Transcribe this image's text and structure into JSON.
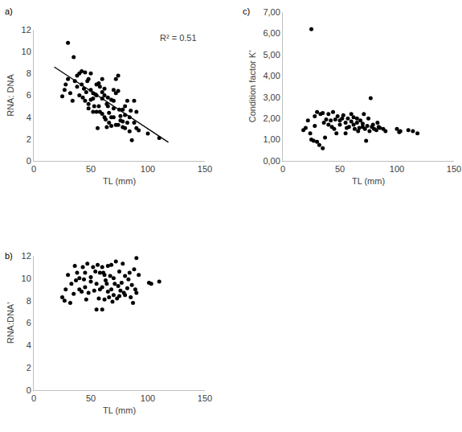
{
  "chart_data": [
    {
      "type": "scatter",
      "title": "a)",
      "x_label": "TL (mm)",
      "y_label": "RNA: DNA",
      "xlim": [
        0,
        150
      ],
      "xticks": [
        0,
        50,
        100,
        150
      ],
      "ylim": [
        0,
        12
      ],
      "yticks": [
        0,
        2,
        4,
        6,
        8,
        10,
        12
      ],
      "annotations": [
        {
          "text": "R² = 0.51"
        }
      ],
      "series": [
        {
          "type": "scatter",
          "color": "#000000",
          "marker": "circle",
          "x": [
            30,
            35,
            27,
            28,
            25,
            32,
            38,
            40,
            42,
            45,
            40,
            43,
            45,
            48,
            50,
            50,
            52,
            55,
            55,
            58,
            60,
            60,
            62,
            65,
            57,
            55,
            58,
            60,
            62,
            52,
            50,
            48,
            53,
            65,
            68,
            70,
            72,
            74,
            70,
            72,
            75,
            78,
            80,
            82,
            68,
            70,
            66,
            68,
            72,
            74,
            76,
            78,
            80,
            82,
            84,
            85,
            88,
            90,
            88,
            86,
            90,
            92,
            100,
            110,
            63,
            64,
            56,
            48,
            44,
            36,
            34,
            30,
            38,
            46,
            54,
            60,
            66,
            74,
            76,
            80,
            47,
            42,
            57,
            64,
            70,
            78,
            84,
            62,
            52
          ],
          "values": [
            10.8,
            9.5,
            6.5,
            7,
            5.9,
            6.2,
            6.8,
            8,
            8.2,
            8.1,
            6,
            5.8,
            5.5,
            7.5,
            8,
            6.5,
            6.2,
            6,
            7,
            6.8,
            7.5,
            6.3,
            6,
            5.8,
            5,
            4.5,
            4.5,
            4.3,
            4,
            4.5,
            5.6,
            5.2,
            5,
            5,
            5.6,
            5.5,
            7.5,
            7.8,
            6.5,
            6.2,
            4.7,
            4.7,
            5,
            5.5,
            4,
            4,
            3.5,
            3.2,
            3.3,
            3.3,
            3.7,
            3.6,
            3,
            3.5,
            4,
            4.6,
            5.5,
            4.5,
            3.5,
            1.9,
            3,
            2.8,
            2.5,
            2.1,
            3.8,
            3.1,
            3,
            4.8,
            6.6,
            7.3,
            5.5,
            7.5,
            7.8,
            6.3,
            6.1,
            5.7,
            4.4,
            6.4,
            4.1,
            4.2,
            7.3,
            7,
            7.1,
            5.2,
            4.8,
            3.1,
            2.7,
            6.6,
            5.7
          ]
        },
        {
          "type": "line",
          "color": "#000000",
          "line_style": "solid",
          "x": [
            18,
            118
          ],
          "values": [
            8.6,
            1.7
          ]
        }
      ]
    },
    {
      "type": "scatter",
      "title": "b)",
      "x_label": "TL (mm)",
      "y_label": "RNA:DNA'",
      "xlim": [
        0,
        150
      ],
      "xticks": [
        0,
        50,
        100,
        150
      ],
      "ylim": [
        0,
        12
      ],
      "yticks": [
        0,
        2,
        4,
        6,
        8,
        10,
        12
      ],
      "series": [
        {
          "type": "scatter",
          "color": "#000000",
          "marker": "circle",
          "x": [
            25,
            27,
            28,
            30,
            32,
            33,
            35,
            37,
            38,
            40,
            40,
            42,
            43,
            45,
            45,
            47,
            48,
            50,
            50,
            52,
            53,
            55,
            55,
            56,
            57,
            58,
            60,
            60,
            60,
            62,
            62,
            63,
            65,
            65,
            66,
            67,
            68,
            68,
            70,
            70,
            71,
            72,
            73,
            74,
            75,
            76,
            77,
            78,
            80,
            80,
            82,
            83,
            84,
            85,
            86,
            87,
            88,
            89,
            90,
            90,
            92,
            101,
            103,
            110,
            46,
            54,
            64,
            69,
            79,
            58,
            36,
            44,
            61,
            75
          ],
          "values": [
            8.3,
            8,
            9,
            10.3,
            7.8,
            9.5,
            8.6,
            9.8,
            10.5,
            10,
            9,
            8.8,
            11,
            10.5,
            9.2,
            11.3,
            8.7,
            9.7,
            10.1,
            11,
            8.9,
            9.5,
            7.2,
            11.2,
            8.2,
            10.5,
            7.2,
            9.2,
            11,
            8.1,
            10.3,
            9.8,
            11.1,
            8.8,
            8.3,
            10.2,
            9,
            11.2,
            8.5,
            10,
            9.5,
            11.5,
            8.2,
            9.3,
            10.6,
            8.9,
            9.6,
            11.3,
            8.5,
            10.2,
            9.1,
            9.9,
            10.5,
            8.3,
            9.4,
            7.8,
            10.8,
            9,
            11.8,
            8.7,
            10.3,
            9.6,
            9.5,
            9.7,
            8.1,
            10.6,
            9.5,
            7.9,
            8.7,
            9,
            11.1,
            9.9,
            10.5,
            8.4
          ]
        }
      ]
    },
    {
      "type": "scatter",
      "title": "c)",
      "x_label": "TL (mm)",
      "y_label": "Condition factor K'",
      "xlim": [
        0,
        150
      ],
      "xticks": [
        0,
        50,
        100,
        150
      ],
      "ylim": [
        0,
        7
      ],
      "yticks": [
        {
          "value": 0,
          "label": "0,00"
        },
        {
          "value": 1,
          "label": "1,00"
        },
        {
          "value": 2,
          "label": "2,00"
        },
        {
          "value": 3,
          "label": "3,00"
        },
        {
          "value": 4,
          "label": "4,00"
        },
        {
          "value": 5,
          "label": "5,00"
        },
        {
          "value": 6,
          "label": "6,00"
        },
        {
          "value": 7,
          "label": "7,00"
        }
      ],
      "series": [
        {
          "type": "scatter",
          "color": "#000000",
          "marker": "circle",
          "x": [
            25,
            18,
            20,
            22,
            24,
            25,
            27,
            28,
            28,
            30,
            30,
            32,
            33,
            35,
            35,
            37,
            38,
            40,
            40,
            42,
            44,
            45,
            46,
            48,
            50,
            50,
            52,
            53,
            55,
            55,
            57,
            58,
            60,
            60,
            62,
            63,
            65,
            65,
            66,
            68,
            70,
            70,
            71,
            72,
            73,
            74,
            75,
            76,
            77,
            78,
            79,
            80,
            82,
            84,
            85,
            88,
            90,
            100,
            102,
            103,
            110,
            114,
            118,
            47,
            56,
            62,
            67,
            83,
            36,
            43
          ],
          "values": [
            6.2,
            1.45,
            1.55,
            1.9,
            1.3,
            1,
            0.95,
            1.65,
            2.1,
            2.3,
            0.9,
            0.75,
            2.2,
            0.6,
            2.25,
            1.1,
            1.95,
            2.2,
            1.7,
            1.9,
            2.3,
            1.5,
            1.95,
            2.1,
            1.9,
            1.7,
            2,
            2.15,
            1.8,
            1.3,
            2,
            1.6,
            1.85,
            2.2,
            1.7,
            1.5,
            2,
            1.8,
            1.4,
            1.9,
            1.6,
            1.75,
            2.2,
            1.5,
            0.95,
            1.65,
            2,
            1.4,
            2.95,
            1.6,
            1.7,
            1.5,
            1.45,
            1.6,
            1.55,
            1.5,
            1.4,
            1.5,
            1.35,
            1.4,
            1.45,
            1.4,
            1.3,
            1.3,
            1.55,
            2.05,
            1.55,
            1.8,
            1.8,
            1.6
          ]
        }
      ]
    }
  ]
}
